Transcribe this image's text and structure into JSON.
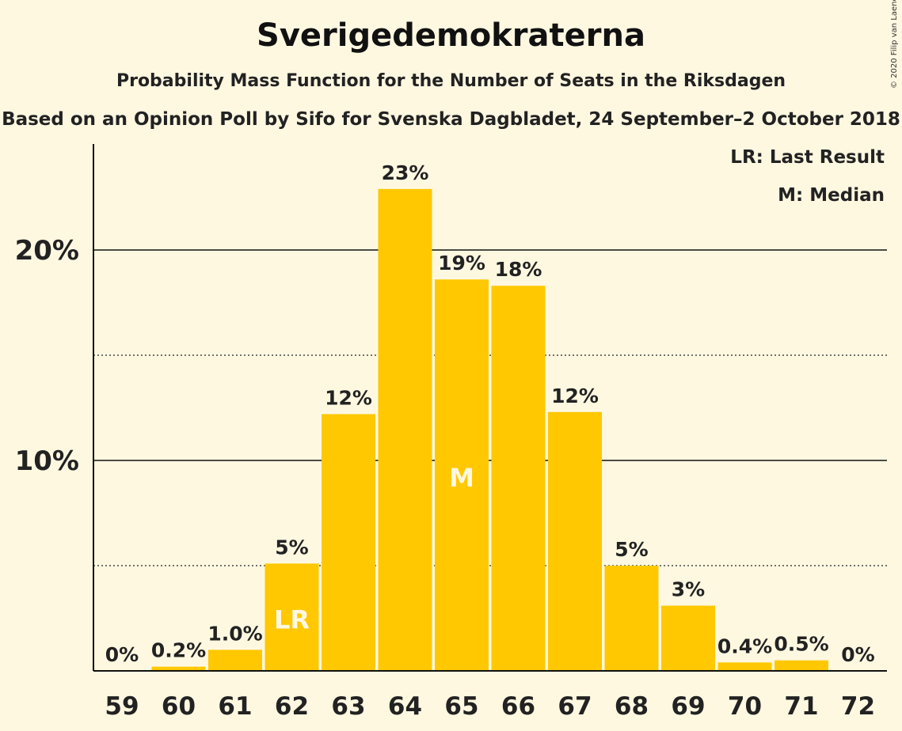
{
  "title": "Sverigedemokraterna",
  "subtitle": "Probability Mass Function for the Number of Seats in the Riksdagen",
  "source_line": "Based on an Opinion Poll by Sifo for Svenska Dagbladet, 24 September–2 October 2018",
  "copyright": "© 2020 Filip van Laenen",
  "legend": {
    "last_result": "LR: Last Result",
    "median": "M: Median"
  },
  "colors": {
    "bar": "#ffc800",
    "background": "#fff8e1",
    "marker_text": "#fff8e1"
  },
  "chart_data": {
    "type": "bar",
    "categories": [
      "59",
      "60",
      "61",
      "62",
      "63",
      "64",
      "65",
      "66",
      "67",
      "68",
      "69",
      "70",
      "71",
      "72"
    ],
    "values": [
      0,
      0.2,
      1.0,
      5.1,
      12.2,
      22.9,
      18.6,
      18.3,
      12.3,
      5.0,
      3.1,
      0.4,
      0.5,
      0
    ],
    "data_labels": [
      "0%",
      "0.2%",
      "1.0%",
      "5%",
      "12%",
      "23%",
      "19%",
      "18%",
      "12%",
      "5%",
      "3%",
      "0.4%",
      "0.5%",
      "0%"
    ],
    "yticks": [
      10,
      20
    ],
    "ytick_labels": [
      "10%",
      "20%"
    ],
    "minor_gridlines": [
      5,
      15
    ],
    "ylim": [
      0,
      25
    ],
    "markers": [
      {
        "category": "62",
        "label": "LR"
      },
      {
        "category": "65",
        "label": "M"
      }
    ],
    "legend_position": "top-right"
  }
}
